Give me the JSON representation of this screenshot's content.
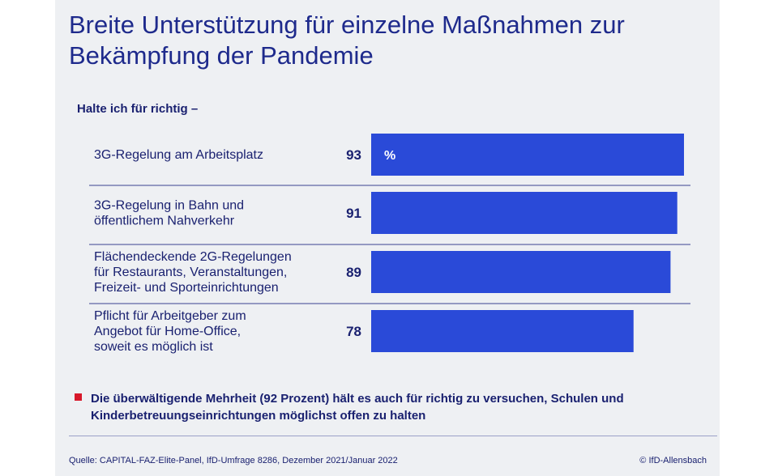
{
  "header": {
    "title_line1": "Breite Unterstützung für einzelne Maßnahmen zur",
    "title_line2": "Bekämpfung der Pandemie"
  },
  "chart_data": {
    "type": "bar",
    "orientation": "horizontal",
    "subtitle": "Halte ich für richtig –",
    "unit": "%",
    "categories": [
      [
        "3G-Regelung am Arbeitsplatz"
      ],
      [
        "3G-Regelung in Bahn und",
        "öffentlichem Nahverkehr"
      ],
      [
        "Flächendeckende 2G-Regelungen",
        "für Restaurants, Veranstaltungen,",
        "Freizeit- und Sporteinrichtungen"
      ],
      [
        "Pflicht für Arbeitgeber zum",
        "Angebot für Home-Office,",
        "soweit es möglich ist"
      ]
    ],
    "values": [
      93,
      91,
      89,
      78
    ],
    "xlim": [
      0,
      100
    ],
    "bar_color": "#2a4ad8",
    "grid": false
  },
  "note": {
    "marker_color": "#d7182a",
    "text": "Die überwältigende Mehrheit (92 Prozent) hält es auch für richtig zu versuchen, Schulen und Kinderbetreuungseinrichtungen möglichst offen zu halten"
  },
  "footer": {
    "source": "Quelle: CAPITAL-FAZ-Elite-Panel, IfD-Umfrage 8286, Dezember 2021/Januar 2022",
    "copyright": "© IfD-Allensbach"
  }
}
